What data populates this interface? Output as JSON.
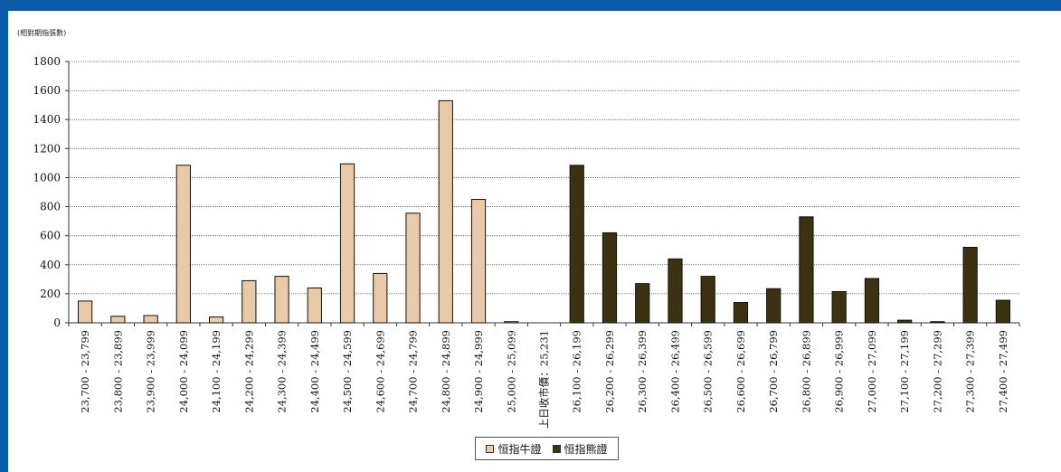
{
  "chart_data": {
    "type": "bar",
    "unit_label": "(相對期指張數)",
    "ylim": [
      0,
      1800
    ],
    "yticks": [
      0,
      200,
      400,
      600,
      800,
      1000,
      1200,
      1400,
      1600,
      1800
    ],
    "grid": true,
    "legend_position": "bottom-center",
    "categories": [
      "23,700 - 23,799",
      "23,800 - 23,899",
      "23,900 - 23,999",
      "24,000 - 24,099",
      "24,100 - 24,199",
      "24,200 - 24,299",
      "24,300 - 24,399",
      "24,400 - 24,499",
      "24,500 - 24,599",
      "24,600 - 24,699",
      "24,700 - 24,799",
      "24,800 - 24,899",
      "24,900 - 24,999",
      "25,000 - 25,099",
      "上日收市價：25,231",
      "26,100 - 26,199",
      "26,200 - 26,299",
      "26,300 - 26,399",
      "26,400 - 26,499",
      "26,500 - 26,599",
      "26,600 - 26,699",
      "26,700 - 26,799",
      "26,800 - 26,899",
      "26,900 - 26,999",
      "27,000 - 27,099",
      "27,100 - 27,199",
      "27,200 - 27,299",
      "27,300 - 27,399",
      "27,400 - 27,499"
    ],
    "series": [
      {
        "name": "恒指牛證",
        "color": "#e8c9a8",
        "values": [
          150,
          45,
          50,
          1085,
          40,
          290,
          320,
          240,
          1095,
          340,
          755,
          1530,
          850,
          8,
          null,
          null,
          null,
          null,
          null,
          null,
          null,
          null,
          null,
          null,
          null,
          null,
          null,
          null,
          null
        ]
      },
      {
        "name": "恒指熊證",
        "color": "#3a3210",
        "values": [
          null,
          null,
          null,
          null,
          null,
          null,
          null,
          null,
          null,
          null,
          null,
          null,
          null,
          null,
          null,
          1085,
          620,
          270,
          440,
          320,
          140,
          235,
          730,
          215,
          305,
          18,
          8,
          520,
          155
        ]
      }
    ]
  }
}
